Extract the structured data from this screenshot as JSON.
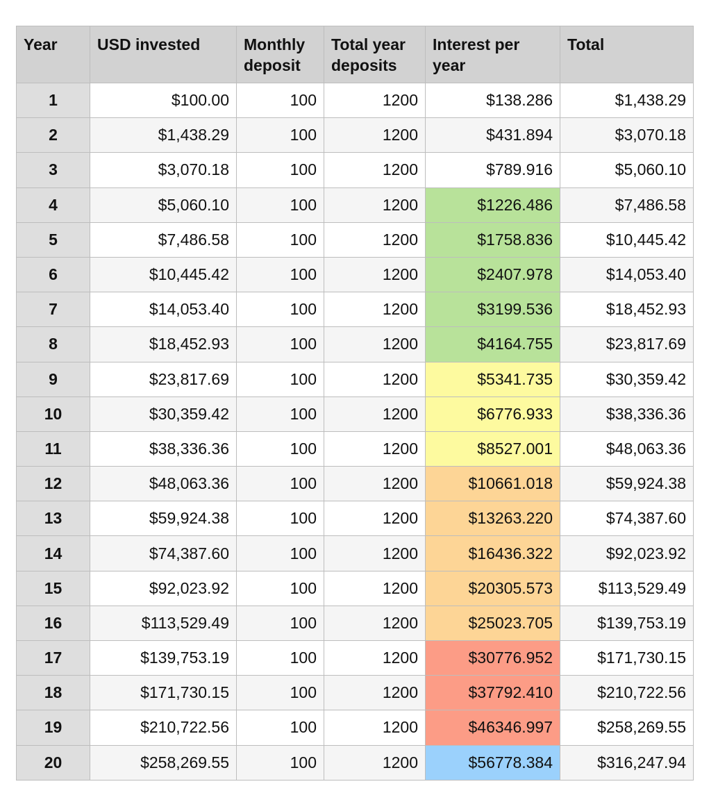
{
  "table": {
    "columns": [
      "Year",
      "USD invested",
      "Monthly deposit",
      "Total year deposits",
      "Interest per year",
      "Total"
    ],
    "header_lines": [
      [
        "Year"
      ],
      [
        "USD invested"
      ],
      [
        "Monthly",
        "deposit"
      ],
      [
        "Total year",
        "deposits"
      ],
      [
        "Interest per",
        "year"
      ],
      [
        "Total"
      ]
    ],
    "highlight_colors": {
      "green": "#b8e29a",
      "yellow": "#fdfa9f",
      "orange": "#fdd596",
      "red": "#fc9c86",
      "blue": "#9bd1fc"
    },
    "rows": [
      {
        "year": "1",
        "usd_invested": "$100.00",
        "monthly_deposit": "100",
        "total_year_deposits": "1200",
        "interest": "$138.286",
        "total": "$1,438.29",
        "highlight": "none"
      },
      {
        "year": "2",
        "usd_invested": "$1,438.29",
        "monthly_deposit": "100",
        "total_year_deposits": "1200",
        "interest": "$431.894",
        "total": "$3,070.18",
        "highlight": "none"
      },
      {
        "year": "3",
        "usd_invested": "$3,070.18",
        "monthly_deposit": "100",
        "total_year_deposits": "1200",
        "interest": "$789.916",
        "total": "$5,060.10",
        "highlight": "none"
      },
      {
        "year": "4",
        "usd_invested": "$5,060.10",
        "monthly_deposit": "100",
        "total_year_deposits": "1200",
        "interest": "$1226.486",
        "total": "$7,486.58",
        "highlight": "green"
      },
      {
        "year": "5",
        "usd_invested": "$7,486.58",
        "monthly_deposit": "100",
        "total_year_deposits": "1200",
        "interest": "$1758.836",
        "total": "$10,445.42",
        "highlight": "green"
      },
      {
        "year": "6",
        "usd_invested": "$10,445.42",
        "monthly_deposit": "100",
        "total_year_deposits": "1200",
        "interest": "$2407.978",
        "total": "$14,053.40",
        "highlight": "green"
      },
      {
        "year": "7",
        "usd_invested": "$14,053.40",
        "monthly_deposit": "100",
        "total_year_deposits": "1200",
        "interest": "$3199.536",
        "total": "$18,452.93",
        "highlight": "green"
      },
      {
        "year": "8",
        "usd_invested": "$18,452.93",
        "monthly_deposit": "100",
        "total_year_deposits": "1200",
        "interest": "$4164.755",
        "total": "$23,817.69",
        "highlight": "green"
      },
      {
        "year": "9",
        "usd_invested": "$23,817.69",
        "monthly_deposit": "100",
        "total_year_deposits": "1200",
        "interest": "$5341.735",
        "total": "$30,359.42",
        "highlight": "yellow"
      },
      {
        "year": "10",
        "usd_invested": "$30,359.42",
        "monthly_deposit": "100",
        "total_year_deposits": "1200",
        "interest": "$6776.933",
        "total": "$38,336.36",
        "highlight": "yellow"
      },
      {
        "year": "11",
        "usd_invested": "$38,336.36",
        "monthly_deposit": "100",
        "total_year_deposits": "1200",
        "interest": "$8527.001",
        "total": "$48,063.36",
        "highlight": "yellow"
      },
      {
        "year": "12",
        "usd_invested": "$48,063.36",
        "monthly_deposit": "100",
        "total_year_deposits": "1200",
        "interest": "$10661.018",
        "total": "$59,924.38",
        "highlight": "orange"
      },
      {
        "year": "13",
        "usd_invested": "$59,924.38",
        "monthly_deposit": "100",
        "total_year_deposits": "1200",
        "interest": "$13263.220",
        "total": "$74,387.60",
        "highlight": "orange"
      },
      {
        "year": "14",
        "usd_invested": "$74,387.60",
        "monthly_deposit": "100",
        "total_year_deposits": "1200",
        "interest": "$16436.322",
        "total": "$92,023.92",
        "highlight": "orange"
      },
      {
        "year": "15",
        "usd_invested": "$92,023.92",
        "monthly_deposit": "100",
        "total_year_deposits": "1200",
        "interest": "$20305.573",
        "total": "$113,529.49",
        "highlight": "orange"
      },
      {
        "year": "16",
        "usd_invested": "$113,529.49",
        "monthly_deposit": "100",
        "total_year_deposits": "1200",
        "interest": "$25023.705",
        "total": "$139,753.19",
        "highlight": "orange"
      },
      {
        "year": "17",
        "usd_invested": "$139,753.19",
        "monthly_deposit": "100",
        "total_year_deposits": "1200",
        "interest": "$30776.952",
        "total": "$171,730.15",
        "highlight": "red"
      },
      {
        "year": "18",
        "usd_invested": "$171,730.15",
        "monthly_deposit": "100",
        "total_year_deposits": "1200",
        "interest": "$37792.410",
        "total": "$210,722.56",
        "highlight": "red"
      },
      {
        "year": "19",
        "usd_invested": "$210,722.56",
        "monthly_deposit": "100",
        "total_year_deposits": "1200",
        "interest": "$46346.997",
        "total": "$258,269.55",
        "highlight": "red"
      },
      {
        "year": "20",
        "usd_invested": "$258,269.55",
        "monthly_deposit": "100",
        "total_year_deposits": "1200",
        "interest": "$56778.384",
        "total": "$316,247.94",
        "highlight": "blue"
      }
    ]
  }
}
